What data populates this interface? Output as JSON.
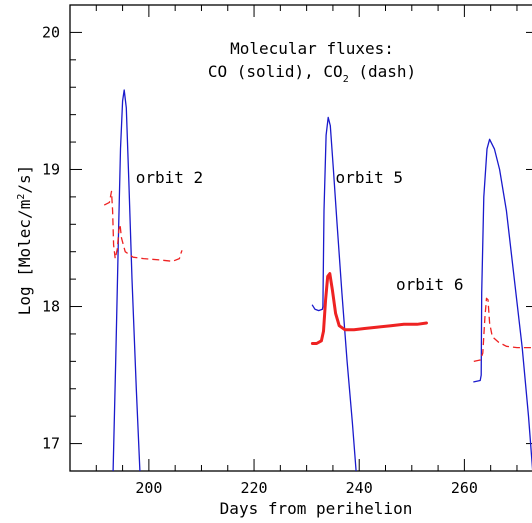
{
  "chart_data": {
    "type": "line",
    "title_lines": [
      "Molecular fluxes:",
      "CO (solid), CO2 (dash)"
    ],
    "title_line1": "Molecular fluxes:",
    "title_line2_prefix": "CO (solid), CO",
    "title_line2_sub": "2",
    "title_line2_suffix": " (dash)",
    "xlabel": "Days from perihelion",
    "ylabel_prefix": "Log [Molec/m",
    "ylabel_sup": "2",
    "ylabel_suffix": "/s]",
    "xlim": [
      185,
      274
    ],
    "ylim": [
      16.8,
      20.2
    ],
    "xticks": [
      200,
      220,
      240,
      260
    ],
    "yticks": [
      17,
      18,
      19,
      20
    ],
    "colors": {
      "co": "#1a1acc",
      "co2": "#ee2222",
      "axis": "#000000"
    },
    "annotations": [
      {
        "text": "orbit 2",
        "x": 197.5,
        "y": 18.9
      },
      {
        "text": "orbit 5",
        "x": 235.5,
        "y": 18.9
      },
      {
        "text": "orbit 6",
        "x": 247,
        "y": 18.12
      }
    ],
    "series": [
      {
        "name": "CO",
        "style": "solid",
        "segments": [
          [
            [
              193.2,
              16.8
            ],
            [
              193.7,
              17.6
            ],
            [
              194.2,
              18.5
            ],
            [
              194.6,
              19.15
            ],
            [
              195.0,
              19.5
            ],
            [
              195.3,
              19.58
            ],
            [
              195.7,
              19.45
            ],
            [
              196.2,
              18.9
            ],
            [
              196.8,
              18.2
            ],
            [
              197.6,
              17.4
            ],
            [
              198.3,
              16.8
            ]
          ],
          [
            [
              231.1,
              18.01
            ],
            [
              231.6,
              17.98
            ],
            [
              232.3,
              17.97
            ],
            [
              233.0,
              17.98
            ],
            [
              233.1,
              18.0
            ],
            [
              233.3,
              18.7
            ],
            [
              233.7,
              19.25
            ],
            [
              234.1,
              19.38
            ],
            [
              234.5,
              19.32
            ],
            [
              235.1,
              19.0
            ],
            [
              235.8,
              18.6
            ],
            [
              236.7,
              18.1
            ],
            [
              237.7,
              17.6
            ],
            [
              238.7,
              17.15
            ],
            [
              239.4,
              16.8
            ]
          ],
          [
            [
              261.8,
              17.45
            ],
            [
              263.0,
              17.46
            ],
            [
              263.2,
              17.5
            ],
            [
              263.3,
              18.1
            ],
            [
              263.7,
              18.8
            ],
            [
              264.3,
              19.15
            ],
            [
              264.8,
              19.22
            ],
            [
              265.7,
              19.15
            ],
            [
              266.7,
              19.0
            ],
            [
              268.0,
              18.7
            ],
            [
              269.5,
              18.2
            ],
            [
              271.0,
              17.7
            ],
            [
              272.2,
              17.2
            ],
            [
              273.0,
              16.8
            ]
          ]
        ]
      },
      {
        "name": "CO2",
        "style": "dash",
        "segments": [
          [
            [
              191.5,
              18.74
            ],
            [
              192.5,
              18.76
            ],
            [
              192.9,
              18.84
            ],
            [
              193.1,
              18.7
            ],
            [
              193.3,
              18.45
            ],
            [
              193.6,
              18.35
            ],
            [
              194.0,
              18.42
            ],
            [
              194.3,
              18.56
            ],
            [
              194.5,
              18.6
            ],
            [
              194.8,
              18.5
            ],
            [
              195.5,
              18.4
            ],
            [
              197.0,
              18.36
            ],
            [
              199.0,
              18.35
            ],
            [
              202.0,
              18.34
            ],
            [
              204.5,
              18.33
            ],
            [
              205.8,
              18.35
            ],
            [
              206.1,
              18.39
            ],
            [
              206.3,
              18.41
            ]
          ]
        ]
      },
      {
        "name": "CO2 dense",
        "style": "dotted-thick",
        "segments": [
          [
            [
              231.1,
              17.73
            ],
            [
              231.9,
              17.73
            ],
            [
              232.8,
              17.75
            ],
            [
              233.2,
              17.82
            ],
            [
              233.6,
              18.05
            ],
            [
              234.0,
              18.22
            ],
            [
              234.4,
              18.24
            ],
            [
              234.9,
              18.12
            ],
            [
              235.5,
              17.95
            ],
            [
              236.2,
              17.86
            ],
            [
              237.3,
              17.83
            ],
            [
              239.0,
              17.83
            ],
            [
              241.0,
              17.84
            ],
            [
              243.5,
              17.85
            ],
            [
              246.0,
              17.86
            ],
            [
              248.5,
              17.87
            ],
            [
              251.0,
              17.87
            ],
            [
              252.8,
              17.88
            ]
          ]
        ]
      },
      {
        "name": "CO2 orbit6",
        "style": "dash",
        "segments": [
          [
            [
              261.8,
              17.6
            ],
            [
              263.0,
              17.61
            ],
            [
              263.5,
              17.66
            ],
            [
              263.9,
              17.92
            ],
            [
              264.2,
              18.06
            ],
            [
              264.5,
              18.05
            ],
            [
              264.8,
              17.88
            ],
            [
              265.3,
              17.78
            ],
            [
              266.5,
              17.74
            ],
            [
              268.0,
              17.71
            ],
            [
              270.0,
              17.7
            ],
            [
              272.0,
              17.7
            ],
            [
              274.0,
              17.7
            ]
          ]
        ]
      }
    ]
  }
}
